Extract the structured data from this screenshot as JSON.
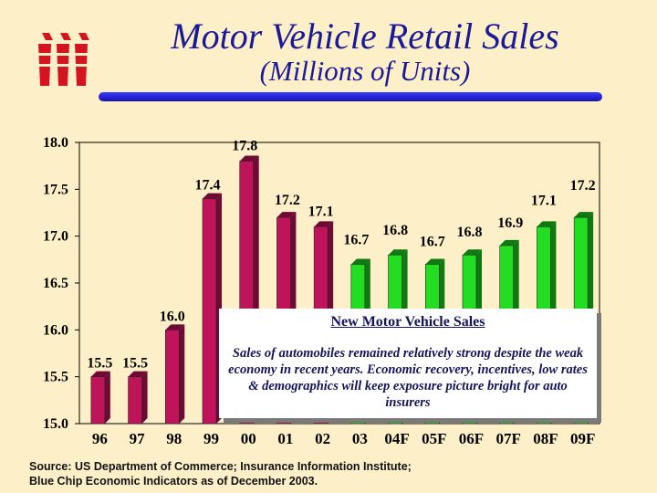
{
  "header": {
    "title": "Motor Vehicle Retail Sales",
    "subtitle": "(Millions of Units)"
  },
  "chart_data": {
    "type": "bar",
    "categories": [
      "96",
      "97",
      "98",
      "99",
      "00",
      "01",
      "02",
      "03",
      "04F",
      "05F",
      "06F",
      "07F",
      "08F",
      "09F"
    ],
    "values": [
      15.5,
      15.5,
      16.0,
      17.4,
      17.8,
      17.2,
      17.1,
      16.7,
      16.8,
      16.7,
      16.8,
      16.9,
      17.1,
      17.2
    ],
    "value_labels": [
      "15.5",
      "15.5",
      "16.0",
      "17.4",
      "17.8",
      "17.2",
      "17.1",
      "16.7",
      "16.8",
      "16.7",
      "16.8",
      "16.9",
      "17.1",
      "17.2"
    ],
    "series_colors": [
      "#c0145a",
      "#c0145a",
      "#c0145a",
      "#c0145a",
      "#c0145a",
      "#c0145a",
      "#c0145a",
      "#22dd22",
      "#22dd22",
      "#22dd22",
      "#22dd22",
      "#22dd22",
      "#22dd22",
      "#22dd22"
    ],
    "ylim": [
      15.0,
      18.0
    ],
    "yticks": [
      "15.0",
      "15.5",
      "16.0",
      "16.5",
      "17.0",
      "17.5",
      "18.0"
    ],
    "xlabel": "",
    "ylabel": "",
    "grid": false,
    "colors": {
      "historical": "#c0145a",
      "forecast": "#22dd22"
    }
  },
  "callout": {
    "heading": "New Motor Vehicle Sales",
    "body": "Sales of automobiles remained relatively strong despite the weak economy in recent years.  Economic recovery, incentives, low rates & demographics will keep exposure picture bright for auto insurers"
  },
  "source": {
    "line1": "Source: US Department of Commerce; Insurance Information Institute;",
    "line2": "Blue Chip Economic Indicators as of December 2003."
  },
  "logo": {
    "icon": "iii-logo-icon",
    "color": "#d4141e"
  }
}
